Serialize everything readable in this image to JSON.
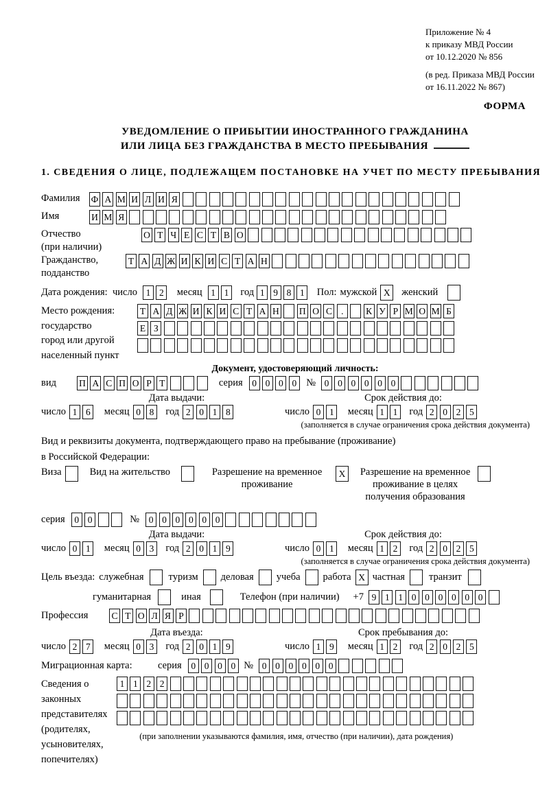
{
  "header": {
    "line1": "Приложение № 4",
    "line2": "к приказу МВД России",
    "line3": "от 10.12.2020 № 856",
    "line4": "(в ред. Приказа МВД России",
    "line5": "от 16.11.2022 № 867)",
    "form_label": "ФОРМА"
  },
  "title": {
    "line1": "УВЕДОМЛЕНИЕ О ПРИБЫТИИ ИНОСТРАННОГО ГРАЖДАНИНА",
    "line2": "ИЛИ ЛИЦА БЕЗ ГРАЖДАНСТВА В МЕСТО ПРЕБЫВАНИЯ"
  },
  "section1_heading": "1. СВЕДЕНИЯ О ЛИЦЕ, ПОДЛЕЖАЩЕМ ПОСТАНОВКЕ НА УЧЕТ ПО МЕСТУ ПРЕБЫВАНИЯ",
  "labels": {
    "day": "число",
    "month": "месяц",
    "year": "год",
    "series": "серия",
    "number": "№",
    "issue_date": "Дата выдачи:",
    "valid_until": "Срок действия до:",
    "restriction_note": "(заполняется в случае ограничения срока действия документа)"
  },
  "person": {
    "surname": {
      "label": "Фамилия",
      "cells": {
        "value": "ФАМИЛИЯ",
        "boxes": 28
      }
    },
    "name": {
      "label": "Имя",
      "cells": {
        "value": "ИМЯ",
        "boxes": 27
      }
    },
    "patronymic": {
      "label1": "Отчество",
      "label2": "(при наличии)",
      "cells": {
        "value": "ОТЧЕСТВО",
        "boxes": 25
      }
    },
    "citizenship": {
      "label1": "Гражданство,",
      "label2": "подданство",
      "cells": {
        "value": "ТАДЖИКИСТАН",
        "boxes": 26
      }
    },
    "birth_date": {
      "label": "Дата рождения:",
      "day": "12",
      "month": "11",
      "year": "1981"
    },
    "sex": {
      "label": "Пол:",
      "male_label": "мужской",
      "male_mark": "X",
      "female_label": "женский",
      "female_mark": ""
    },
    "birth_place": {
      "label1": "Место рождения:",
      "label2": "государство",
      "label3": "город или другой",
      "label4": "населенный пункт",
      "row1": {
        "value": "ТАДЖИКИСТАН ПОС. КУРМОМБ",
        "boxes": 24
      },
      "row2": {
        "value": "ЕЗ",
        "boxes": 24
      },
      "row3": {
        "value": "",
        "boxes": 24
      }
    }
  },
  "identity_doc": {
    "heading": "Документ, удостоверяющий личность:",
    "type_label": "вид",
    "type": {
      "value": "ПАСПОРТ",
      "boxes": 10
    },
    "series": {
      "value": "0000",
      "boxes": 4
    },
    "number": {
      "value": "000000",
      "boxes": 12
    },
    "issue": {
      "day": "16",
      "month": "08",
      "year": "2018"
    },
    "valid": {
      "day": "01",
      "month": "11",
      "year": "2025"
    }
  },
  "residence_doc": {
    "intro1": "Вид и реквизиты документа, подтверждающего право на пребывание (проживание)",
    "intro2": "в Российской Федерации:",
    "visa": {
      "label": "Виза",
      "mark": ""
    },
    "residence_permit": {
      "label": "Вид на жительство",
      "mark": ""
    },
    "temp_residence": {
      "line1": "Разрешение на временное",
      "line2": "проживание",
      "mark": "X"
    },
    "temp_residence_edu": {
      "line1": "Разрешение на временное",
      "line2": "проживание в целях",
      "line3": "получения образования",
      "mark": ""
    },
    "series": {
      "value": "00",
      "boxes": 4
    },
    "number": {
      "value": "000000",
      "boxes": 13
    },
    "issue": {
      "day": "01",
      "month": "03",
      "year": "2019"
    },
    "valid": {
      "day": "01",
      "month": "12",
      "year": "2025"
    }
  },
  "visit": {
    "purpose_label": "Цель въезда:",
    "options_row1": [
      {
        "label": "служебная",
        "mark": ""
      },
      {
        "label": "туризм",
        "mark": ""
      },
      {
        "label": "деловая",
        "mark": ""
      },
      {
        "label": "учеба",
        "mark": ""
      },
      {
        "label": "работа",
        "mark": "X"
      },
      {
        "label": "частная",
        "mark": ""
      },
      {
        "label": "транзит",
        "mark": ""
      }
    ],
    "options_row2": [
      {
        "label": "гуманитарная",
        "mark": ""
      },
      {
        "label": "иная",
        "mark": ""
      }
    ],
    "phone_label": "Телефон (при наличии)",
    "phone_prefix": "+7",
    "phone": {
      "value": "911000000",
      "boxes": 10
    },
    "profession_label": "Профессия",
    "profession": {
      "value": "СТОЛЯР",
      "boxes": 28
    }
  },
  "entry": {
    "entry_heading": "Дата въезда:",
    "entry_date": {
      "day": "27",
      "month": "03",
      "year": "2019"
    },
    "stay_heading": "Срок пребывания до:",
    "stay_date": {
      "day": "19",
      "month": "12",
      "year": "2025"
    }
  },
  "migration_card": {
    "label": "Миграционная карта:",
    "series": {
      "value": "0000",
      "boxes": 4
    },
    "number": {
      "value": "000000",
      "boxes": 11
    }
  },
  "representatives": {
    "label1": "Сведения о",
    "label2": "законных",
    "label3": "представителях",
    "label4": "(родителях,",
    "label5": "усыновителях,",
    "label6": "попечителях)",
    "row1": {
      "value": "1122",
      "boxes": 27
    },
    "row2": {
      "value": "",
      "boxes": 27
    },
    "row3": {
      "value": "",
      "boxes": 27
    },
    "note": "(при заполнении указываются фамилия, имя, отчество (при наличии), дата рождения)"
  }
}
